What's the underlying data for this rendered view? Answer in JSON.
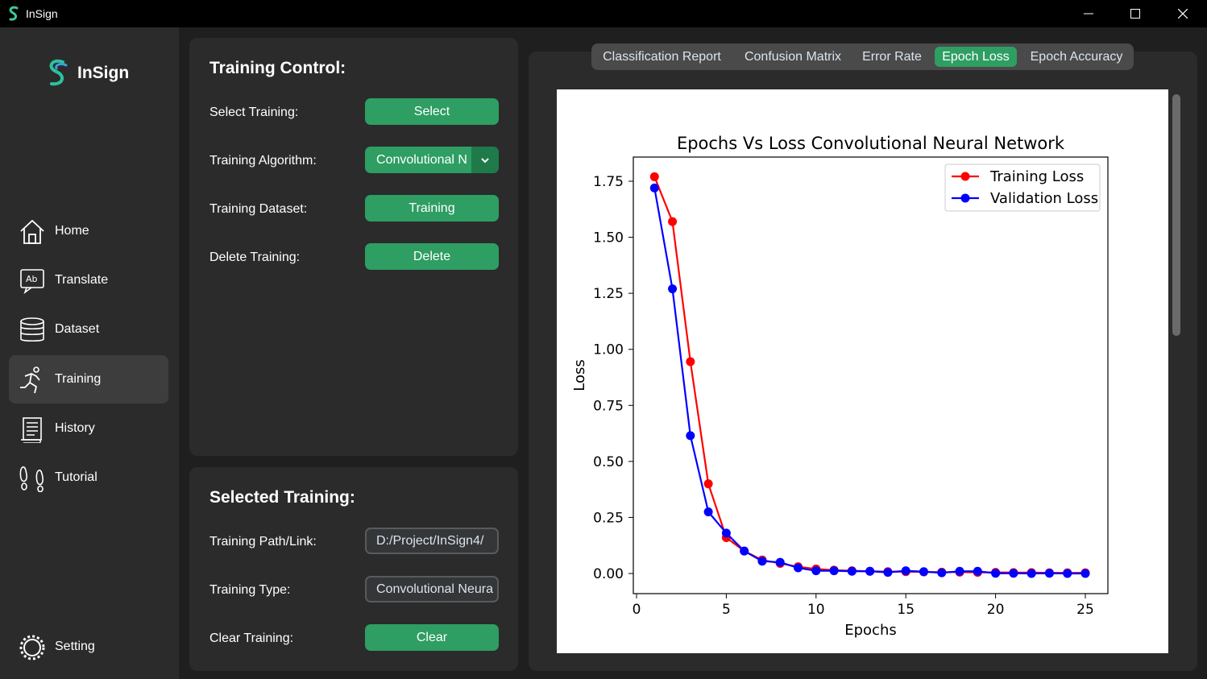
{
  "window": {
    "title": "InSign"
  },
  "sidebar": {
    "logo_text": "InSign",
    "items": [
      {
        "label": "Home",
        "icon": "home-icon"
      },
      {
        "label": "Translate",
        "icon": "translate-icon"
      },
      {
        "label": "Dataset",
        "icon": "database-icon"
      },
      {
        "label": "Training",
        "icon": "running-icon",
        "active": true
      },
      {
        "label": "History",
        "icon": "scroll-icon"
      },
      {
        "label": "Tutorial",
        "icon": "footprints-icon"
      },
      {
        "label": "Setting",
        "icon": "gear-icon"
      }
    ]
  },
  "training_control": {
    "title": "Training Control:",
    "select_label": "Select Training:",
    "select_button": "Select",
    "algorithm_label": "Training Algorithm:",
    "algorithm_value": "Convolutional N",
    "dataset_label": "Training Dataset:",
    "dataset_button": "Training",
    "delete_label": "Delete Training:",
    "delete_button": "Delete"
  },
  "selected_training": {
    "title": "Selected Training:",
    "path_label": "Training Path/Link:",
    "path_value": "D:/Project/InSign4/",
    "type_label": "Training Type:",
    "type_value": "Convolutional Neura",
    "clear_label": "Clear Training:",
    "clear_button": "Clear"
  },
  "tabs": [
    {
      "label": "Classification Report"
    },
    {
      "label": "Confusion Matrix"
    },
    {
      "label": "Error Rate"
    },
    {
      "label": "Epoch Loss",
      "active": true
    },
    {
      "label": "Epoch Accuracy"
    }
  ],
  "colors": {
    "accent": "#2e9e63",
    "training_series": "#ff0000",
    "validation_series": "#0000ff"
  },
  "chart_data": {
    "type": "line",
    "title": "Epochs Vs Loss Convolutional Neural Network",
    "xlabel": "Epochs",
    "ylabel": "Loss",
    "xlim": [
      0,
      25
    ],
    "ylim": [
      0.0,
      1.75
    ],
    "xticks": [
      0,
      5,
      10,
      15,
      20,
      25
    ],
    "yticks": [
      "0.00",
      "0.25",
      "0.50",
      "0.75",
      "1.00",
      "1.25",
      "1.50",
      "1.75"
    ],
    "legend_position": "top-right",
    "x": [
      1,
      2,
      3,
      4,
      5,
      6,
      7,
      8,
      9,
      10,
      11,
      12,
      13,
      14,
      15,
      16,
      17,
      18,
      19,
      20,
      21,
      22,
      23,
      24,
      25
    ],
    "series": [
      {
        "name": "Training Loss",
        "color": "#ff0000",
        "values": [
          1.77,
          1.57,
          0.945,
          0.4,
          0.16,
          0.1,
          0.06,
          0.045,
          0.03,
          0.02,
          0.015,
          0.012,
          0.01,
          0.008,
          0.008,
          0.007,
          0.006,
          0.006,
          0.005,
          0.005,
          0.004,
          0.004,
          0.003,
          0.003,
          0.003
        ]
      },
      {
        "name": "Validation Loss",
        "color": "#0000ff",
        "values": [
          1.72,
          1.27,
          0.615,
          0.275,
          0.18,
          0.1,
          0.055,
          0.05,
          0.025,
          0.012,
          0.012,
          0.01,
          0.01,
          0.005,
          0.012,
          0.008,
          0.003,
          0.01,
          0.01,
          0.001,
          0.001,
          0.0,
          0.001,
          0.0,
          0.0
        ]
      }
    ]
  }
}
